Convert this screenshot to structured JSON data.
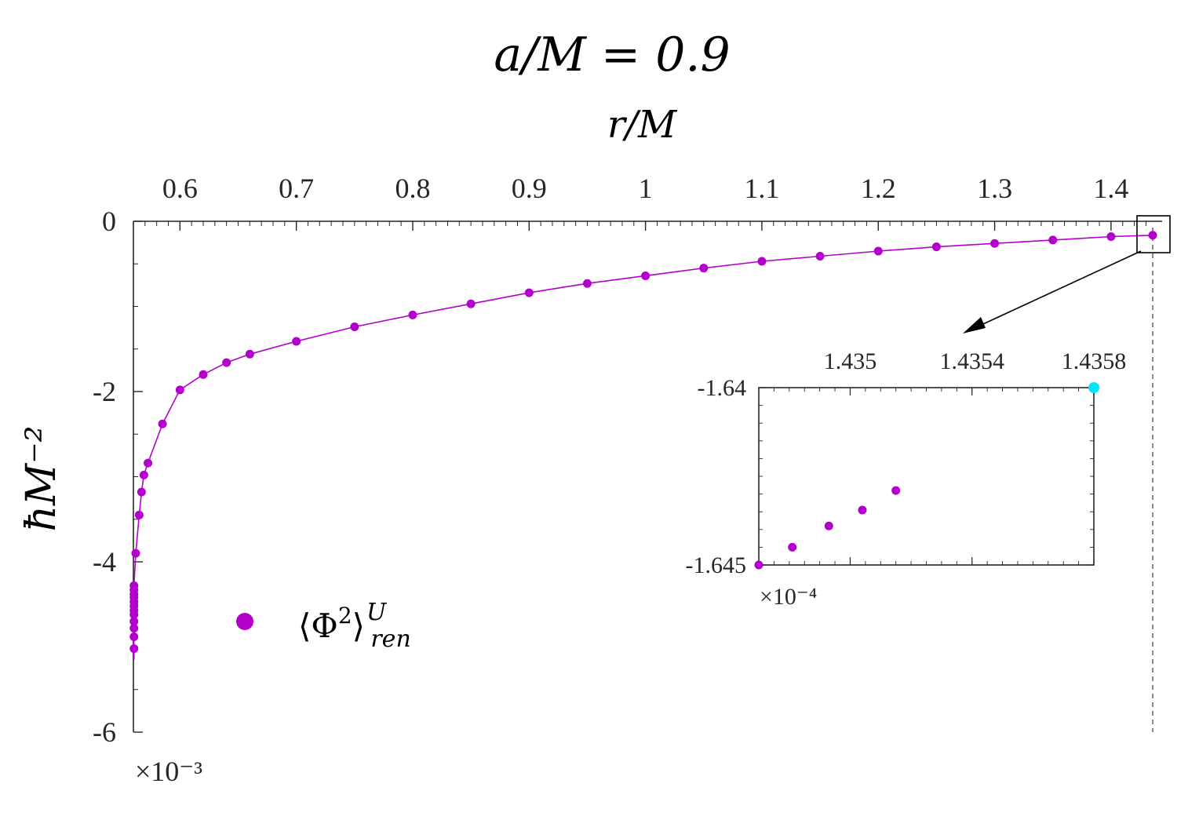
{
  "chart_data": [
    {
      "type": "scatter",
      "title": "a/M = 0.9",
      "xlabel": "r/M",
      "ylabel": "ħM⁻²",
      "y_multiplier": "×10⁻³",
      "xlim": [
        0.56,
        1.4358
      ],
      "ylim": [
        -6,
        0
      ],
      "x_ticks": [
        "0.6",
        "0.7",
        "0.8",
        "0.9",
        "1",
        "1.1",
        "1.2",
        "1.3",
        "1.4"
      ],
      "y_ticks": [
        "0",
        "-2",
        "-4",
        "-6"
      ],
      "x_axis_position": "top",
      "legend": {
        "placement": "bottom-left",
        "entries": [
          "⟨Φ²⟩^U_ren"
        ]
      },
      "marker_color": "#B300CC",
      "series": [
        {
          "name": "⟨Φ²⟩^U_ren",
          "x": [
            0.5605,
            0.5605,
            0.5605,
            0.5605,
            0.5605,
            0.5605,
            0.5605,
            0.5605,
            0.5605,
            0.5605,
            0.5605,
            0.5605,
            0.562,
            0.565,
            0.567,
            0.569,
            0.5725,
            0.585,
            0.6,
            0.62,
            0.64,
            0.66,
            0.7,
            0.75,
            0.8,
            0.85,
            0.9,
            0.95,
            1.0,
            1.05,
            1.1,
            1.15,
            1.2,
            1.25,
            1.3,
            1.35,
            1.4,
            1.4358
          ],
          "y": [
            -5.02,
            -4.88,
            -4.78,
            -4.7,
            -4.62,
            -4.57,
            -4.52,
            -4.47,
            -4.42,
            -4.38,
            -4.33,
            -4.28,
            -3.9,
            -3.45,
            -3.18,
            -2.98,
            -2.84,
            -2.38,
            -1.98,
            -1.8,
            -1.66,
            -1.56,
            -1.41,
            -1.24,
            -1.1,
            -0.97,
            -0.84,
            -0.73,
            -0.64,
            -0.55,
            -0.47,
            -0.41,
            -0.35,
            -0.3,
            -0.26,
            -0.22,
            -0.18,
            -0.164
          ]
        }
      ],
      "vertical_reference_line": {
        "x": 1.4358,
        "style": "dashed"
      }
    },
    {
      "type": "scatter",
      "title": "",
      "xlim": [
        1.4347,
        1.4358
      ],
      "ylim": [
        -1.645,
        -1.64
      ],
      "x_ticks": [
        "1.435",
        "1.4354",
        "1.4358"
      ],
      "y_ticks": [
        "-1.64",
        "-1.645"
      ],
      "y_multiplier": "×10⁻⁴",
      "x_axis_position": "top",
      "series": [
        {
          "name": "",
          "x": [
            1.4347,
            1.43481,
            1.43493,
            1.43504,
            1.43515
          ],
          "y": [
            -1.645,
            -1.6445,
            -1.6439,
            -1.64345,
            -1.6429
          ]
        }
      ],
      "highlight_point": {
        "x": 1.4358,
        "y": -1.64,
        "color": "#00E5FF"
      }
    }
  ]
}
